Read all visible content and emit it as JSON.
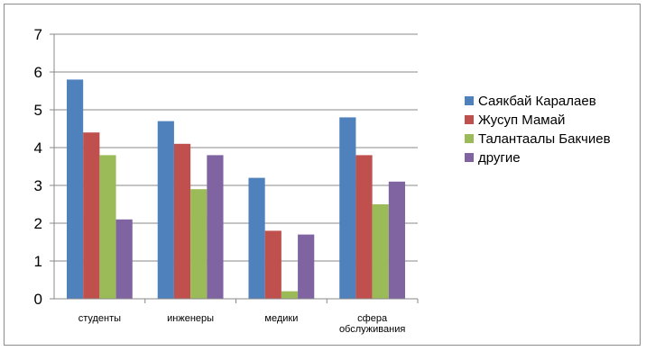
{
  "chart_data": {
    "type": "bar",
    "categories": [
      [
        "студенты"
      ],
      [
        "инженеры"
      ],
      [
        "медики"
      ],
      [
        "сфера",
        "обслуживания"
      ]
    ],
    "series": [
      {
        "name": "Саякбай Каралаев",
        "color": "#4f81bd",
        "values": [
          5.8,
          4.7,
          3.2,
          4.8
        ]
      },
      {
        "name": "Жусуп Мамай",
        "color": "#c0504d",
        "values": [
          4.4,
          4.1,
          1.8,
          3.8
        ]
      },
      {
        "name": "Талантаалы Бакчиев",
        "color": "#9bbb59",
        "values": [
          3.8,
          2.9,
          0.2,
          2.5
        ]
      },
      {
        "name": "другие",
        "color": "#8064a2",
        "values": [
          2.1,
          3.8,
          1.7,
          3.1
        ]
      }
    ],
    "ylim": [
      0,
      7
    ],
    "yticks": [
      0,
      1,
      2,
      3,
      4,
      5,
      6,
      7
    ],
    "grid": true,
    "legend": "right"
  }
}
